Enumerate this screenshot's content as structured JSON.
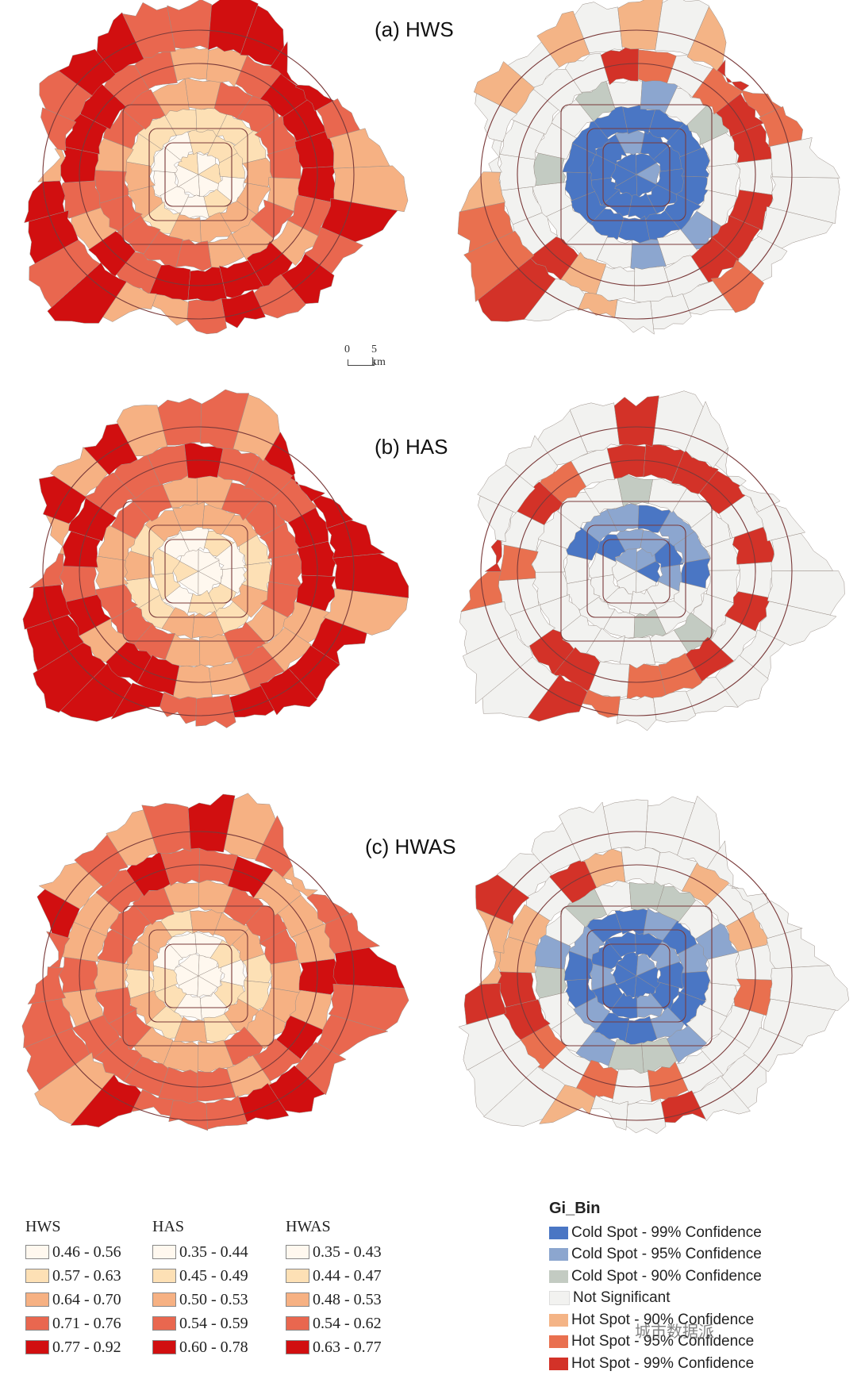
{
  "panels": [
    {
      "title": "(a) HWS"
    },
    {
      "title": "(b) HAS"
    },
    {
      "title": "(c) HWAS"
    }
  ],
  "scale_bar": {
    "zero": "0",
    "five": "5 km"
  },
  "legends": [
    {
      "title": "HWS",
      "ranges": [
        "0.46 - 0.56",
        "0.57 - 0.63",
        "0.64 - 0.70",
        "0.71 - 0.76",
        "0.77 - 0.92"
      ]
    },
    {
      "title": "HAS",
      "ranges": [
        "0.35 - 0.44",
        "0.45 - 0.49",
        "0.50 - 0.53",
        "0.54 - 0.59",
        "0.60 - 0.78"
      ]
    },
    {
      "title": "HWAS",
      "ranges": [
        "0.35 - 0.43",
        "0.44 - 0.47",
        "0.48 - 0.53",
        "0.54 - 0.62",
        "0.63 - 0.77"
      ]
    }
  ],
  "class_colors": [
    "#fff8ef",
    "#fde0b5",
    "#f6b183",
    "#e9674f",
    "#d10f10"
  ],
  "gi_legend": {
    "title": "Gi_Bin",
    "items": [
      {
        "label": "Cold Spot - 99% Confidence",
        "color": "#4a76c4"
      },
      {
        "label": "Cold Spot - 95% Confidence",
        "color": "#8ca6cf"
      },
      {
        "label": "Cold Spot - 90% Confidence",
        "color": "#c3cbc2"
      },
      {
        "label": "Not Significant",
        "color": "#f2f2f0"
      },
      {
        "label": "Hot Spot - 90% Confidence",
        "color": "#f4b486"
      },
      {
        "label": "Hot Spot - 95% Confidence",
        "color": "#e9704f"
      },
      {
        "label": "Hot Spot - 99% Confidence",
        "color": "#d33228"
      }
    ]
  },
  "watermark": "城市数据派"
}
